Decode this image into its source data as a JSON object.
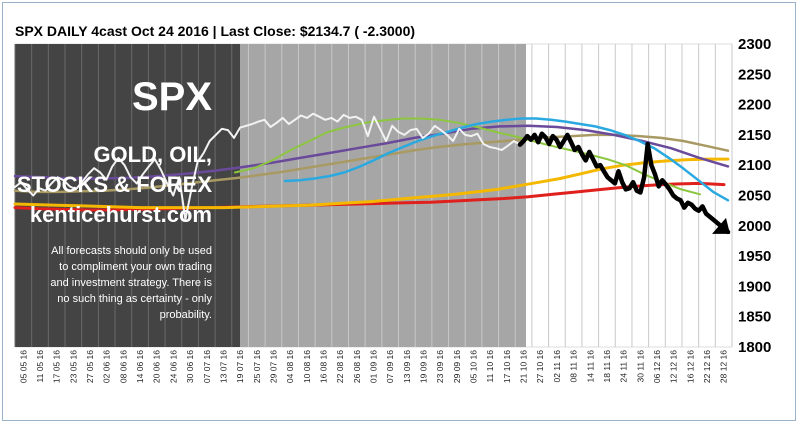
{
  "title": "SPX DAILY 4cast  Oct 24 2016 | Last Close: $2134.7 ( -2.3000)",
  "brand": {
    "symbol": "SPX",
    "line1": "GOLD, OIL,",
    "line2": "STOCKS & FOREX",
    "site": "kenticehurst.com",
    "disclaimer": [
      "All forecasts should only be used",
      "to compliment your own trading",
      "and investment strategy. There is",
      "no such thing as certainty - only",
      "probability."
    ]
  },
  "colors": {
    "dark_panel": "#444444",
    "history_panel": "#a6a6a6",
    "price": "#f2f2f2",
    "forecast": "#000000",
    "red_ma": "#e0201c",
    "yellow_ma": "#f5b800",
    "tan_ma": "#a89a62",
    "purple_ma": "#6a4a9a",
    "blue_ma": "#2aa9e0",
    "green_ma": "#8cc63f"
  },
  "chart_data": {
    "type": "line",
    "title": "SPX DAILY 4cast  Oct 24 2016 | Last Close: $2134.7 ( -2.3000)",
    "xlabel": "",
    "ylabel": "",
    "ylim": [
      1800,
      2300
    ],
    "yticks": [
      1800,
      1850,
      1900,
      1950,
      2000,
      2050,
      2100,
      2150,
      2200,
      2250,
      2300
    ],
    "xticks": [
      "05 05 16",
      "11 05 16",
      "17 05 16",
      "23 05 16",
      "27 05 16",
      "02 06 16",
      "08 06 16",
      "14 06 16",
      "20 06 16",
      "24 06 16",
      "30 06 16",
      "07 07 16",
      "13 07 16",
      "19 07 16",
      "25 07 16",
      "29 07 16",
      "04 08 16",
      "10 08 16",
      "16 08 16",
      "22 08 16",
      "26 08 16",
      "01 09 16",
      "07 09 16",
      "13 09 16",
      "19 09 16",
      "23 09 16",
      "29 09 16",
      "05 10 16",
      "11 10 16",
      "17 10 16",
      "21 10 16",
      "27 10 16",
      "02 11 16",
      "08 11 16",
      "14 11 16",
      "18 11 16",
      "24 11 16",
      "30 11 16",
      "06 12 16",
      "12 12 16",
      "16 12 16",
      "22 12 16",
      "28 12 16"
    ],
    "grid": true,
    "legend": "none",
    "series": [
      {
        "color": "#f2f2f2",
        "values": [
          2064,
          2072,
          2060,
          2050,
          2062,
          2058,
          2070,
          2080,
          2075,
          2065,
          2060,
          2072,
          2085,
          2095,
          2088,
          2076,
          2098,
          2112,
          2100,
          2080,
          2070,
          2085,
          2098,
          2110,
          2092,
          2070,
          2050,
          2080,
          2010,
          2060,
          2105,
          2120,
          2140,
          2150,
          2160,
          2158,
          2145,
          2162,
          2165,
          2168,
          2172,
          2175,
          2163,
          2170,
          2178,
          2168,
          2175,
          2182,
          2178,
          2185,
          2180,
          2175,
          2178,
          2172,
          2183,
          2178,
          2180,
          2175,
          2148,
          2180,
          2160,
          2140,
          2165,
          2155,
          2150,
          2158,
          2160,
          2145,
          2152,
          2165,
          2158,
          2150,
          2140,
          2160,
          2150,
          2148,
          2152,
          2135,
          2130,
          2128,
          2125,
          2132,
          2140,
          2134
        ]
      },
      {
        "color": "#000000",
        "values": [
          2134,
          2140,
          2148,
          2142,
          2150,
          2138,
          2152,
          2146,
          2135,
          2148,
          2142,
          2130,
          2140,
          2150,
          2138,
          2125,
          2130,
          2118,
          2108,
          2122,
          2110,
          2098,
          2100,
          2090,
          2080,
          2075,
          2070,
          2090,
          2072,
          2060,
          2062,
          2072,
          2058,
          2055,
          2080,
          2135,
          2100,
          2085,
          2065,
          2075,
          2068,
          2060,
          2050,
          2045,
          2042,
          2030,
          2038,
          2035,
          2028,
          2025,
          2032,
          2020,
          2015,
          2010,
          2005,
          2000,
          1995,
          1990
        ]
      },
      {
        "color": "#e0201c",
        "values": [
          2030,
          2028,
          2027,
          2026,
          2026,
          2027,
          2028,
          2029,
          2030,
          2031,
          2032,
          2033,
          2034,
          2035,
          2036,
          2037,
          2038,
          2039,
          2041,
          2043,
          2045,
          2048,
          2052,
          2056,
          2060,
          2064,
          2067,
          2069,
          2070,
          2068
        ]
      },
      {
        "color": "#f5b800",
        "values": [
          2036,
          2035,
          2034,
          2033,
          2032,
          2031,
          2030,
          2030,
          2030,
          2030,
          2030,
          2031,
          2032,
          2033,
          2034,
          2036,
          2038,
          2040,
          2043,
          2046,
          2049,
          2052,
          2056,
          2060,
          2066,
          2072,
          2078,
          2086,
          2094,
          2100,
          2104,
          2107,
          2109,
          2110,
          2110
        ]
      },
      {
        "color": "#a89a62",
        "values": [
          2058,
          2056,
          2056,
          2057,
          2058,
          2060,
          2063,
          2067,
          2071,
          2075,
          2079,
          2084,
          2089,
          2095,
          2101,
          2107,
          2113,
          2119,
          2125,
          2130,
          2134,
          2137,
          2140,
          2143,
          2146,
          2148,
          2150,
          2150,
          2148,
          2145,
          2140,
          2132,
          2124
        ]
      },
      {
        "color": "#6a4a9a",
        "values": [
          2082,
          2080,
          2078,
          2078,
          2079,
          2082,
          2086,
          2091,
          2097,
          2104,
          2112,
          2120,
          2128,
          2136,
          2145,
          2152,
          2160,
          2164,
          2165,
          2163,
          2158,
          2150,
          2140,
          2128,
          2112,
          2098
        ]
      },
      {
        "color": "#2aa9e0",
        "values": [
          2074,
          2075,
          2078,
          2082,
          2088,
          2097,
          2108,
          2120,
          2130,
          2140,
          2148,
          2155,
          2162,
          2168,
          2172,
          2175,
          2177,
          2177,
          2175,
          2172,
          2168,
          2164,
          2158,
          2150,
          2140,
          2128,
          2112,
          2094,
          2075,
          2056,
          2042
        ]
      },
      {
        "color": "#8cc63f",
        "values": [
          2088,
          2095,
          2108,
          2125,
          2140,
          2155,
          2163,
          2170,
          2174,
          2177,
          2177,
          2175,
          2170,
          2163,
          2155,
          2148,
          2140,
          2132,
          2125,
          2118,
          2110,
          2100,
          2085,
          2072,
          2060,
          2052
        ]
      }
    ]
  }
}
